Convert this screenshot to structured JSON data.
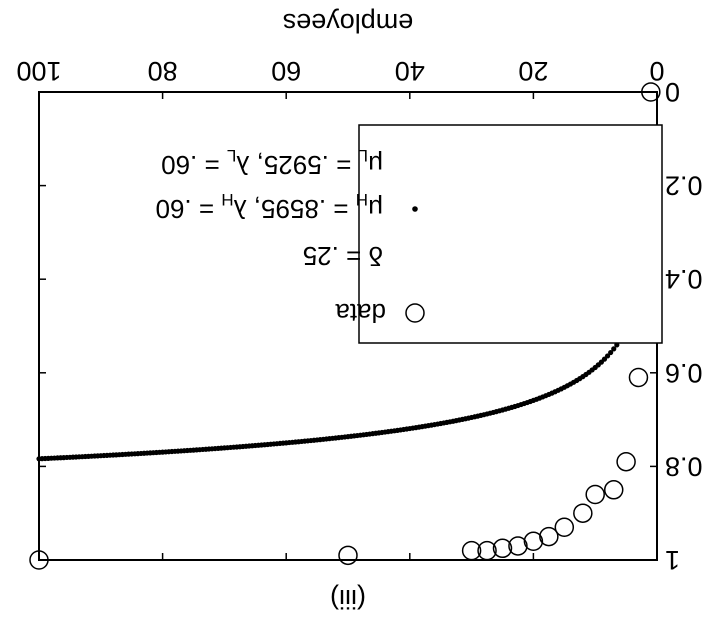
{
  "chart_data": {
    "type": "scatter",
    "orientation": "rotated-180",
    "panel_label": "(iii)",
    "xlabel": "employees",
    "ylabel": "",
    "xlim": [
      0,
      100
    ],
    "ylim": [
      0,
      1
    ],
    "xticks": [
      {
        "value": 0,
        "label": "0"
      },
      {
        "value": 20,
        "label": "20"
      },
      {
        "value": 40,
        "label": "40"
      },
      {
        "value": 60,
        "label": "60"
      },
      {
        "value": 80,
        "label": "80"
      },
      {
        "value": 100,
        "label": "100"
      }
    ],
    "yticks": [
      {
        "value": 0,
        "label": "0"
      },
      {
        "value": 0.2,
        "label": "0.2"
      },
      {
        "value": 0.4,
        "label": "0.4"
      },
      {
        "value": 0.6,
        "label": "0.6"
      },
      {
        "value": 0.8,
        "label": "0.8"
      },
      {
        "value": 1,
        "label": "1"
      }
    ],
    "grid": false,
    "legend_position": "bottom-left",
    "legend": [
      {
        "series": "data",
        "label": "data",
        "marker": "open-circle"
      },
      {
        "series": "model",
        "label": "δ = .25",
        "marker": "dot",
        "line2": "μH = .8595, λH = .60",
        "line3": "μL = .5925, λL = .60"
      }
    ],
    "legend_text": {
      "data": "data",
      "delta": "δ = .25",
      "mu_h": "μ",
      "mu_h_sub": "H",
      "mu_h_val": " = .8595, λ",
      "lambda_h_sub": "H",
      "lambda_h_val": " = .60",
      "mu_l": "μ",
      "mu_l_sub": "L",
      "mu_l_val": " = .5925, λ",
      "lambda_l_sub": "L",
      "lambda_l_val": " = .60"
    },
    "series": [
      {
        "name": "data",
        "marker": "open-circle",
        "points": [
          {
            "x": 1,
            "y": 0.0
          },
          {
            "x": 3,
            "y": 0.61
          },
          {
            "x": 5,
            "y": 0.79
          },
          {
            "x": 7,
            "y": 0.85
          },
          {
            "x": 10,
            "y": 0.86
          },
          {
            "x": 12,
            "y": 0.9
          },
          {
            "x": 15,
            "y": 0.93
          },
          {
            "x": 17.5,
            "y": 0.95
          },
          {
            "x": 20,
            "y": 0.96
          },
          {
            "x": 22.5,
            "y": 0.97
          },
          {
            "x": 25,
            "y": 0.975
          },
          {
            "x": 27.5,
            "y": 0.98
          },
          {
            "x": 30,
            "y": 0.98
          },
          {
            "x": 50,
            "y": 0.99
          },
          {
            "x": 100,
            "y": 1.0
          }
        ]
      },
      {
        "name": "model",
        "marker": "dot",
        "curve": {
          "k": 0.8245,
          "p": 0.29,
          "x_min": 0,
          "x_max": 100,
          "step": 0.5
        }
      }
    ]
  }
}
